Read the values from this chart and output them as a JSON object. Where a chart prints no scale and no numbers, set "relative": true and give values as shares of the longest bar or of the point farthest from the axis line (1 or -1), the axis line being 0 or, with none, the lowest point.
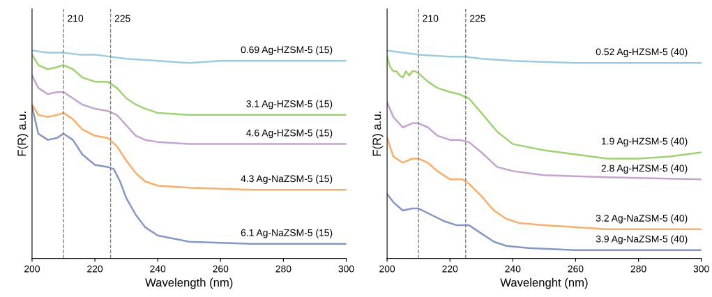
{
  "chart_data": [
    {
      "type": "line",
      "relative": true,
      "xlabel": "Wavelength (nm)",
      "ylabel": "F(R) a.u.",
      "xlim": [
        200,
        300
      ],
      "xticks": [
        200,
        220,
        240,
        260,
        280,
        300
      ],
      "legend": false,
      "grid": false,
      "tick_labels": "x",
      "ref_lines": [
        {
          "axis": "x",
          "value": 210,
          "label": "210",
          "color": "#808080",
          "line_style": "dashed"
        },
        {
          "axis": "x",
          "value": 225,
          "label": "225",
          "color": "#808080",
          "line_style": "dashed"
        }
      ],
      "series": [
        {
          "name": "0.69 Ag-HZSM-5 (15)",
          "color": "#9ccbe0",
          "x": [
            200,
            205,
            210,
            215,
            220,
            225,
            230,
            240,
            250,
            260,
            270,
            280,
            290,
            300
          ],
          "values": [
            1.0,
            0.99,
            0.99,
            0.98,
            0.98,
            0.97,
            0.96,
            0.95,
            0.94,
            0.95,
            0.95,
            0.95,
            0.95,
            0.95
          ]
        },
        {
          "name": "3.1 Ag-HZSM-5 (15)",
          "color": "#9ed46e",
          "x": [
            200,
            202,
            205,
            208,
            210,
            213,
            216,
            220,
            224,
            227,
            230,
            233,
            236,
            240,
            250,
            260,
            280,
            300
          ],
          "values": [
            0.98,
            0.93,
            0.91,
            0.92,
            0.93,
            0.91,
            0.87,
            0.85,
            0.85,
            0.82,
            0.77,
            0.74,
            0.72,
            0.7,
            0.69,
            0.69,
            0.69,
            0.69
          ]
        },
        {
          "name": "4.6 Ag-HZSM-5 (15)",
          "color": "#c5a3d1",
          "x": [
            200,
            202,
            205,
            208,
            210,
            213,
            216,
            220,
            224,
            227,
            230,
            233,
            236,
            240,
            250,
            270,
            300
          ],
          "values": [
            0.88,
            0.82,
            0.79,
            0.8,
            0.8,
            0.77,
            0.74,
            0.72,
            0.71,
            0.69,
            0.64,
            0.59,
            0.57,
            0.56,
            0.55,
            0.55,
            0.55
          ]
        },
        {
          "name": "4.3 Ag-NaZSM-5 (15)",
          "color": "#fcae66",
          "x": [
            200,
            202,
            205,
            208,
            210,
            213,
            216,
            220,
            224,
            227,
            230,
            233,
            236,
            240,
            250,
            270,
            300
          ],
          "values": [
            0.74,
            0.69,
            0.68,
            0.69,
            0.7,
            0.67,
            0.62,
            0.59,
            0.58,
            0.54,
            0.47,
            0.41,
            0.37,
            0.35,
            0.34,
            0.33,
            0.33
          ]
        },
        {
          "name": "6.1 Ag-NaZSM-5 (15)",
          "color": "#8497c8",
          "x": [
            200,
            202,
            205,
            208,
            210,
            213,
            216,
            220,
            224,
            226,
            228,
            230,
            233,
            236,
            240,
            250,
            270,
            300
          ],
          "values": [
            0.73,
            0.6,
            0.57,
            0.58,
            0.6,
            0.57,
            0.5,
            0.45,
            0.44,
            0.43,
            0.37,
            0.29,
            0.21,
            0.15,
            0.11,
            0.08,
            0.07,
            0.07
          ]
        }
      ]
    },
    {
      "type": "line",
      "relative": true,
      "xlabel": "Wavelenght (nm)",
      "ylabel": "F(R) a.u.",
      "xlim": [
        200,
        300
      ],
      "xticks": [
        200,
        220,
        240,
        260,
        280,
        300
      ],
      "legend": false,
      "grid": false,
      "tick_labels": "x",
      "ref_lines": [
        {
          "axis": "x",
          "value": 210,
          "label": "210",
          "color": "#808080",
          "line_style": "dashed"
        },
        {
          "axis": "x",
          "value": 225,
          "label": "225",
          "color": "#808080",
          "line_style": "dashed"
        }
      ],
      "series": [
        {
          "name": "0.52 Ag-HZSM-5 (40)",
          "color": "#9ccbe0",
          "x": [
            200,
            205,
            210,
            220,
            225,
            230,
            240,
            260,
            280,
            300
          ],
          "values": [
            1.0,
            0.99,
            0.98,
            0.97,
            0.97,
            0.96,
            0.95,
            0.94,
            0.94,
            0.94
          ]
        },
        {
          "name": "1.9 Ag-HZSM-5 (40)",
          "color": "#9ed46e",
          "x": [
            200,
            201,
            202,
            203,
            204,
            205,
            206,
            207,
            208,
            209,
            210,
            213,
            216,
            220,
            223,
            226,
            230,
            235,
            240,
            250,
            260,
            270,
            280,
            290,
            300
          ],
          "values": [
            0.97,
            0.92,
            0.9,
            0.9,
            0.88,
            0.87,
            0.9,
            0.88,
            0.9,
            0.9,
            0.89,
            0.85,
            0.82,
            0.8,
            0.79,
            0.77,
            0.7,
            0.61,
            0.55,
            0.52,
            0.5,
            0.48,
            0.48,
            0.49,
            0.51
          ]
        },
        {
          "name": "2.8 Ag-HZSM-5 (40)",
          "color": "#c5a3d1",
          "x": [
            200,
            202,
            205,
            208,
            210,
            213,
            216,
            220,
            223,
            226,
            230,
            235,
            240,
            250,
            270,
            300
          ],
          "values": [
            0.75,
            0.68,
            0.63,
            0.65,
            0.65,
            0.63,
            0.59,
            0.57,
            0.57,
            0.56,
            0.51,
            0.44,
            0.42,
            0.4,
            0.39,
            0.38
          ]
        },
        {
          "name": "3.2 Ag-NaZSM-5 (40)",
          "color": "#fcae66",
          "x": [
            200,
            202,
            205,
            208,
            210,
            213,
            216,
            220,
            224,
            226,
            230,
            234,
            238,
            242,
            250,
            270,
            280,
            300
          ],
          "values": [
            0.58,
            0.49,
            0.46,
            0.48,
            0.48,
            0.46,
            0.42,
            0.38,
            0.38,
            0.36,
            0.3,
            0.23,
            0.19,
            0.17,
            0.16,
            0.14,
            0.14,
            0.14
          ]
        },
        {
          "name": "3.9 Ag-NaZSM-5 (40)",
          "color": "#8497c8",
          "x": [
            200,
            202,
            205,
            208,
            210,
            214,
            218,
            222,
            226,
            230,
            234,
            238,
            245,
            260,
            300
          ],
          "values": [
            0.31,
            0.27,
            0.23,
            0.24,
            0.24,
            0.21,
            0.18,
            0.16,
            0.16,
            0.12,
            0.08,
            0.06,
            0.05,
            0.04,
            0.04
          ]
        }
      ]
    }
  ]
}
